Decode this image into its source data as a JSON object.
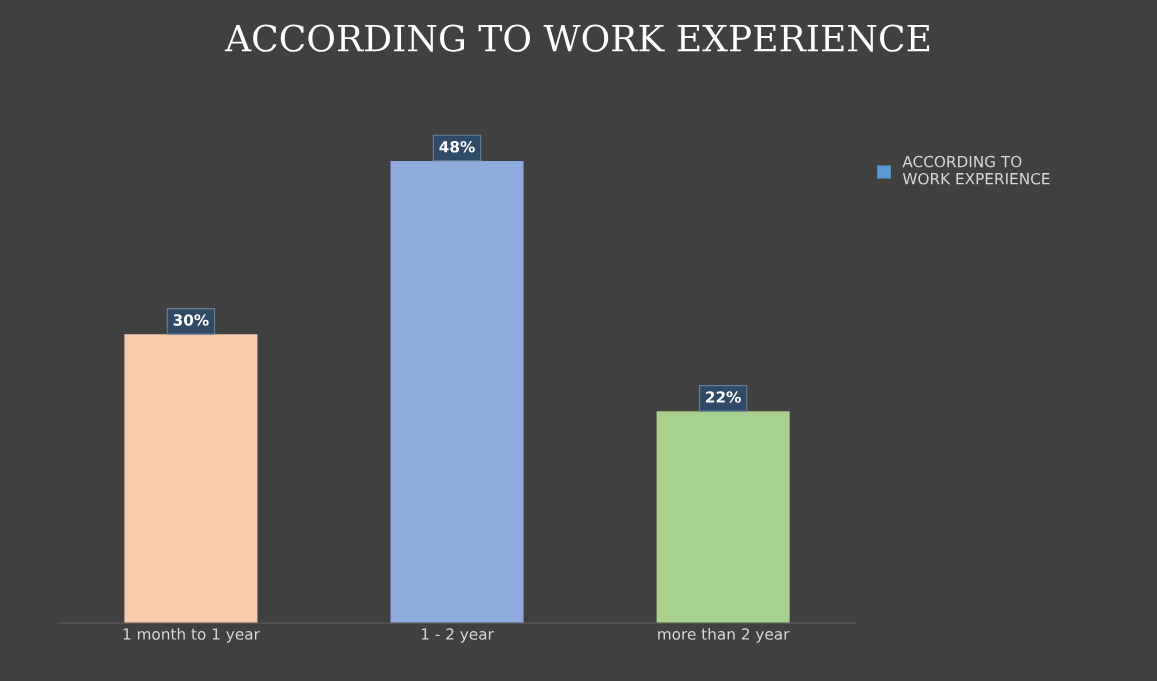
{
  "chart_data": {
    "type": "bar",
    "title": "ACCORDING TO WORK EXPERIENCE",
    "categories": [
      "1 month to 1 year",
      "1 - 2 year",
      "more than 2 year"
    ],
    "series": [
      {
        "name": "ACCORDING TO WORK EXPERIENCE",
        "color": "#5b9bd5",
        "colors": [
          "#f8cbad",
          "#8faadc",
          "#a9d18e"
        ],
        "values": [
          30,
          48,
          22
        ],
        "value_labels": [
          "30%",
          "48%",
          "22%"
        ]
      }
    ],
    "legend": "right"
  }
}
